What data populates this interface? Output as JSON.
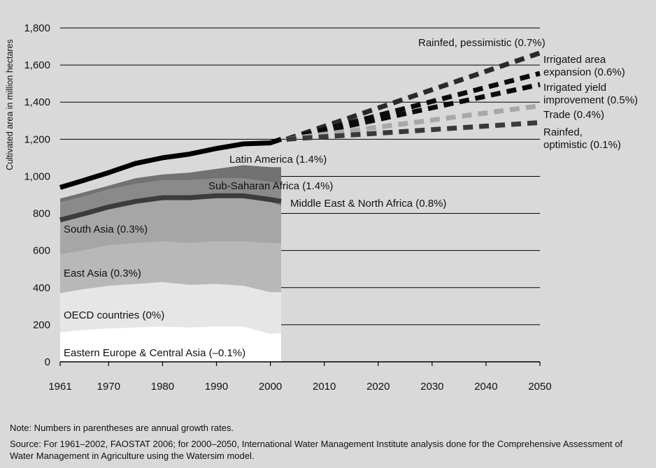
{
  "chart_data": {
    "type": "area",
    "title": "",
    "ylabel": "Cultivated area in million hectares",
    "xlabel": "",
    "xlim": [
      1961,
      2050
    ],
    "ylim": [
      0,
      1800
    ],
    "xticks": [
      1961,
      1970,
      1980,
      1990,
      2000,
      2010,
      2020,
      2030,
      2040,
      2050
    ],
    "yticks": [
      0,
      200,
      400,
      600,
      800,
      1000,
      1200,
      1400,
      1600,
      1800
    ],
    "ytick_labels": [
      "0",
      "200",
      "400",
      "600",
      "800",
      "1,000",
      "1,200",
      "1,400",
      "1,600",
      "1,800"
    ],
    "historical": {
      "x": [
        1961,
        1965,
        1970,
        1975,
        1980,
        1985,
        1990,
        1995,
        2000,
        2002
      ],
      "stacked_top_boundaries": [
        {
          "name": "Eastern Europe & Central Asia (–0.1%)",
          "color": "#ffffff",
          "values": [
            160,
            170,
            180,
            185,
            190,
            185,
            190,
            190,
            150,
            155
          ]
        },
        {
          "name": "OECD countries (0%)",
          "color": "#e6e6e6",
          "values": [
            370,
            390,
            410,
            420,
            430,
            415,
            420,
            410,
            375,
            375
          ]
        },
        {
          "name": "East Asia (0.3%)",
          "color": "#b8b8b8",
          "values": [
            580,
            600,
            630,
            640,
            650,
            640,
            650,
            650,
            640,
            640
          ]
        },
        {
          "name": "South Asia (0.3%)",
          "color": "#a6a6a6",
          "values": [
            760,
            790,
            830,
            860,
            880,
            870,
            890,
            880,
            860,
            840
          ]
        },
        {
          "name": "Middle East & North Africa (0.8%)",
          "color": "#8a8a8a",
          "values": [
            860,
            890,
            930,
            960,
            980,
            980,
            990,
            990,
            970,
            960
          ]
        },
        {
          "name": "Sub-Saharan Africa (1.4%)",
          "color": "#727272",
          "values": [
            880,
            910,
            950,
            990,
            1010,
            1020,
            1040,
            1060,
            1050,
            1050
          ]
        }
      ],
      "total_line": {
        "name": "Latin America (1.4%)",
        "values": [
          940,
          975,
          1020,
          1070,
          1100,
          1120,
          1150,
          1175,
          1180,
          1200
        ]
      }
    },
    "projections": {
      "x": [
        2003,
        2050
      ],
      "series": [
        {
          "name": "Rainfed, pessimistic (0.7%)",
          "color": "#2a2a2a",
          "values": [
            1200,
            1665
          ]
        },
        {
          "name": "Irrigated area expansion (0.6%)",
          "color": "#0a0a0a",
          "values": [
            1200,
            1555
          ]
        },
        {
          "name": "Irrigated yield improvement (0.5%)",
          "color": "#0a0a0a",
          "values": [
            1200,
            1495
          ]
        },
        {
          "name": "Trade (0.4%)",
          "color": "#a8a8a8",
          "values": [
            1200,
            1380
          ]
        },
        {
          "name": "Rainfed, optimistic (0.1%)",
          "color": "#3a3a3a",
          "values": [
            1200,
            1290
          ]
        }
      ]
    },
    "region_labels": [
      "Latin America (1.4%)",
      "Sub-Saharan Africa (1.4%)",
      "Middle East & North Africa (0.8%)",
      "South Asia (0.3%)",
      "East Asia (0.3%)",
      "OECD countries (0%)",
      "Eastern Europe & Central Asia (–0.1%)"
    ],
    "projection_labels": [
      [
        "Rainfed, pessimistic (0.7%)"
      ],
      [
        "Irrigated area",
        "expansion (0.6%)"
      ],
      [
        "Irrigated yield",
        "improvement (0.5%)"
      ],
      [
        "Trade (0.4%)"
      ],
      [
        "Rainfed,",
        "optimistic (0.1%)"
      ]
    ]
  },
  "notes": {
    "note": "Note: Numbers in parentheses are annual growth rates.",
    "source": "Source: For 1961–2002, FAOSTAT 2006; for 2000–2050, International Water Management Institute analysis done for the Comprehensive Assessment of Water Management in Agriculture using the Watersim model."
  }
}
